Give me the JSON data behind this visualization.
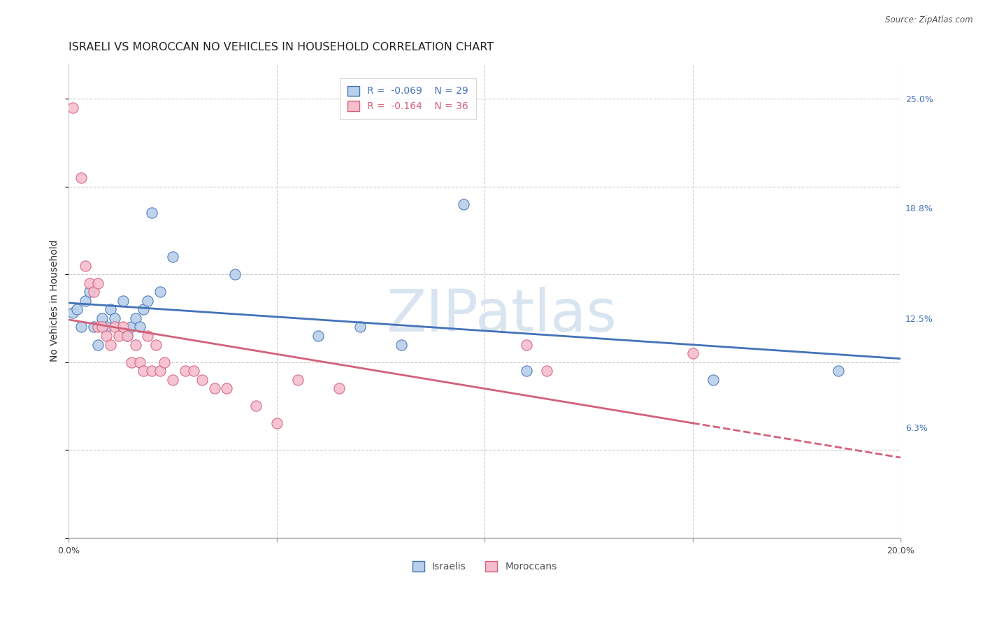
{
  "title": "ISRAELI VS MOROCCAN NO VEHICLES IN HOUSEHOLD CORRELATION CHART",
  "source": "Source: ZipAtlas.com",
  "ylabel": "No Vehicles in Household",
  "xlim": [
    0.0,
    0.2
  ],
  "ylim": [
    0.0,
    0.27
  ],
  "xticks": [
    0.0,
    0.05,
    0.1,
    0.15,
    0.2
  ],
  "xticklabels": [
    "0.0%",
    "",
    "",
    "",
    "20.0%"
  ],
  "ytick_values_right": [
    0.25,
    0.188,
    0.125,
    0.063
  ],
  "ytick_labels_right": [
    "25.0%",
    "18.8%",
    "12.5%",
    "6.3%"
  ],
  "israeli_R": -0.069,
  "israeli_N": 29,
  "moroccan_R": -0.164,
  "moroccan_N": 36,
  "israeli_color": "#b8d0ea",
  "moroccan_color": "#f5bece",
  "israeli_line_color": "#4472b8",
  "moroccan_line_color": "#d4607a",
  "background_color": "#ffffff",
  "grid_color": "#cccccc",
  "watermark_text": "ZIPatlas",
  "israeli_x": [
    0.001,
    0.002,
    0.003,
    0.004,
    0.005,
    0.006,
    0.007,
    0.008,
    0.009,
    0.01,
    0.011,
    0.013,
    0.014,
    0.015,
    0.016,
    0.017,
    0.018,
    0.019,
    0.02,
    0.022,
    0.025,
    0.04,
    0.06,
    0.07,
    0.08,
    0.095,
    0.11,
    0.155,
    0.185
  ],
  "israeli_y": [
    0.128,
    0.13,
    0.12,
    0.135,
    0.14,
    0.12,
    0.11,
    0.125,
    0.12,
    0.13,
    0.125,
    0.135,
    0.115,
    0.12,
    0.125,
    0.12,
    0.13,
    0.135,
    0.185,
    0.14,
    0.16,
    0.15,
    0.115,
    0.12,
    0.11,
    0.19,
    0.095,
    0.09,
    0.095
  ],
  "moroccan_x": [
    0.001,
    0.003,
    0.004,
    0.005,
    0.006,
    0.007,
    0.007,
    0.008,
    0.009,
    0.01,
    0.011,
    0.012,
    0.013,
    0.014,
    0.015,
    0.016,
    0.017,
    0.018,
    0.019,
    0.02,
    0.021,
    0.022,
    0.023,
    0.025,
    0.028,
    0.03,
    0.032,
    0.035,
    0.038,
    0.045,
    0.05,
    0.055,
    0.065,
    0.11,
    0.115,
    0.15
  ],
  "moroccan_y": [
    0.245,
    0.205,
    0.155,
    0.145,
    0.14,
    0.145,
    0.12,
    0.12,
    0.115,
    0.11,
    0.12,
    0.115,
    0.12,
    0.115,
    0.1,
    0.11,
    0.1,
    0.095,
    0.115,
    0.095,
    0.11,
    0.095,
    0.1,
    0.09,
    0.095,
    0.095,
    0.09,
    0.085,
    0.085,
    0.075,
    0.065,
    0.09,
    0.085,
    0.11,
    0.095,
    0.105
  ],
  "title_fontsize": 11.5,
  "axis_label_fontsize": 10,
  "tick_fontsize": 9,
  "legend_fontsize": 10,
  "marker_size": 120
}
